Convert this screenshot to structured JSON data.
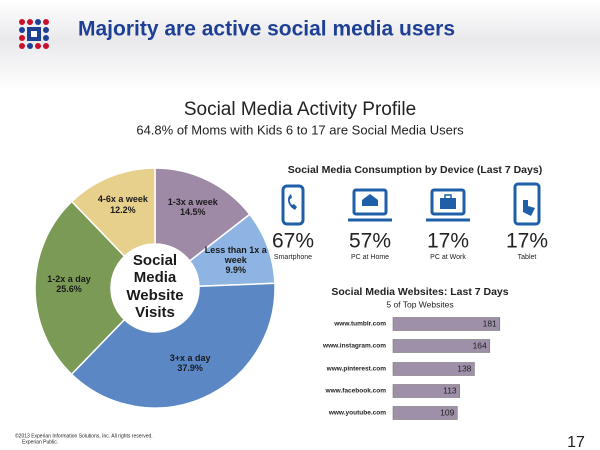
{
  "header": {
    "title": "Majority are active social media users"
  },
  "slide": {
    "title": "Social Media Activity Profile",
    "subtitle": "64.8% of Moms with Kids 6 to 17 are Social Media Users"
  },
  "chart_data": [
    {
      "type": "pie",
      "center_label": "Social Media Website Visits",
      "categories": [
        "1-3x a week",
        "Less than 1x a week",
        "3+x a day",
        "1-2x a day",
        "4-6x a week"
      ],
      "values": [
        14.5,
        9.9,
        37.9,
        25.6,
        12.2
      ],
      "value_labels": [
        "14.5%",
        "9.9%",
        "37.9%",
        "25.6%",
        "12.2%"
      ],
      "colors": [
        "#9e8aa6",
        "#8db4e2",
        "#5b88c4",
        "#7a9a56",
        "#e6d08c"
      ]
    },
    {
      "type": "stat",
      "title": "Social Media Consumption by Device (Last 7 Days)",
      "categories": [
        "Smartphone",
        "PC at Home",
        "PC at Work",
        "Tablet"
      ],
      "values": [
        67,
        57,
        17,
        17
      ],
      "value_labels": [
        "67%",
        "57%",
        "17%",
        "17%"
      ]
    },
    {
      "type": "bar",
      "title": "Social Media Websites: Last 7 Days",
      "subtitle": "5 of Top Websites",
      "categories": [
        "www.tumblr.com",
        "www.instagram.com",
        "www.pinterest.com",
        "www.facebook.com",
        "www.youtube.com"
      ],
      "values": [
        181,
        164,
        138,
        113,
        109
      ],
      "color": "#9d90a8"
    }
  ],
  "footer": {
    "copyright": "©2013 Experian Information Solutions, Inc. All rights reserved.",
    "classification": "Experian Public.",
    "page_number": 17
  }
}
